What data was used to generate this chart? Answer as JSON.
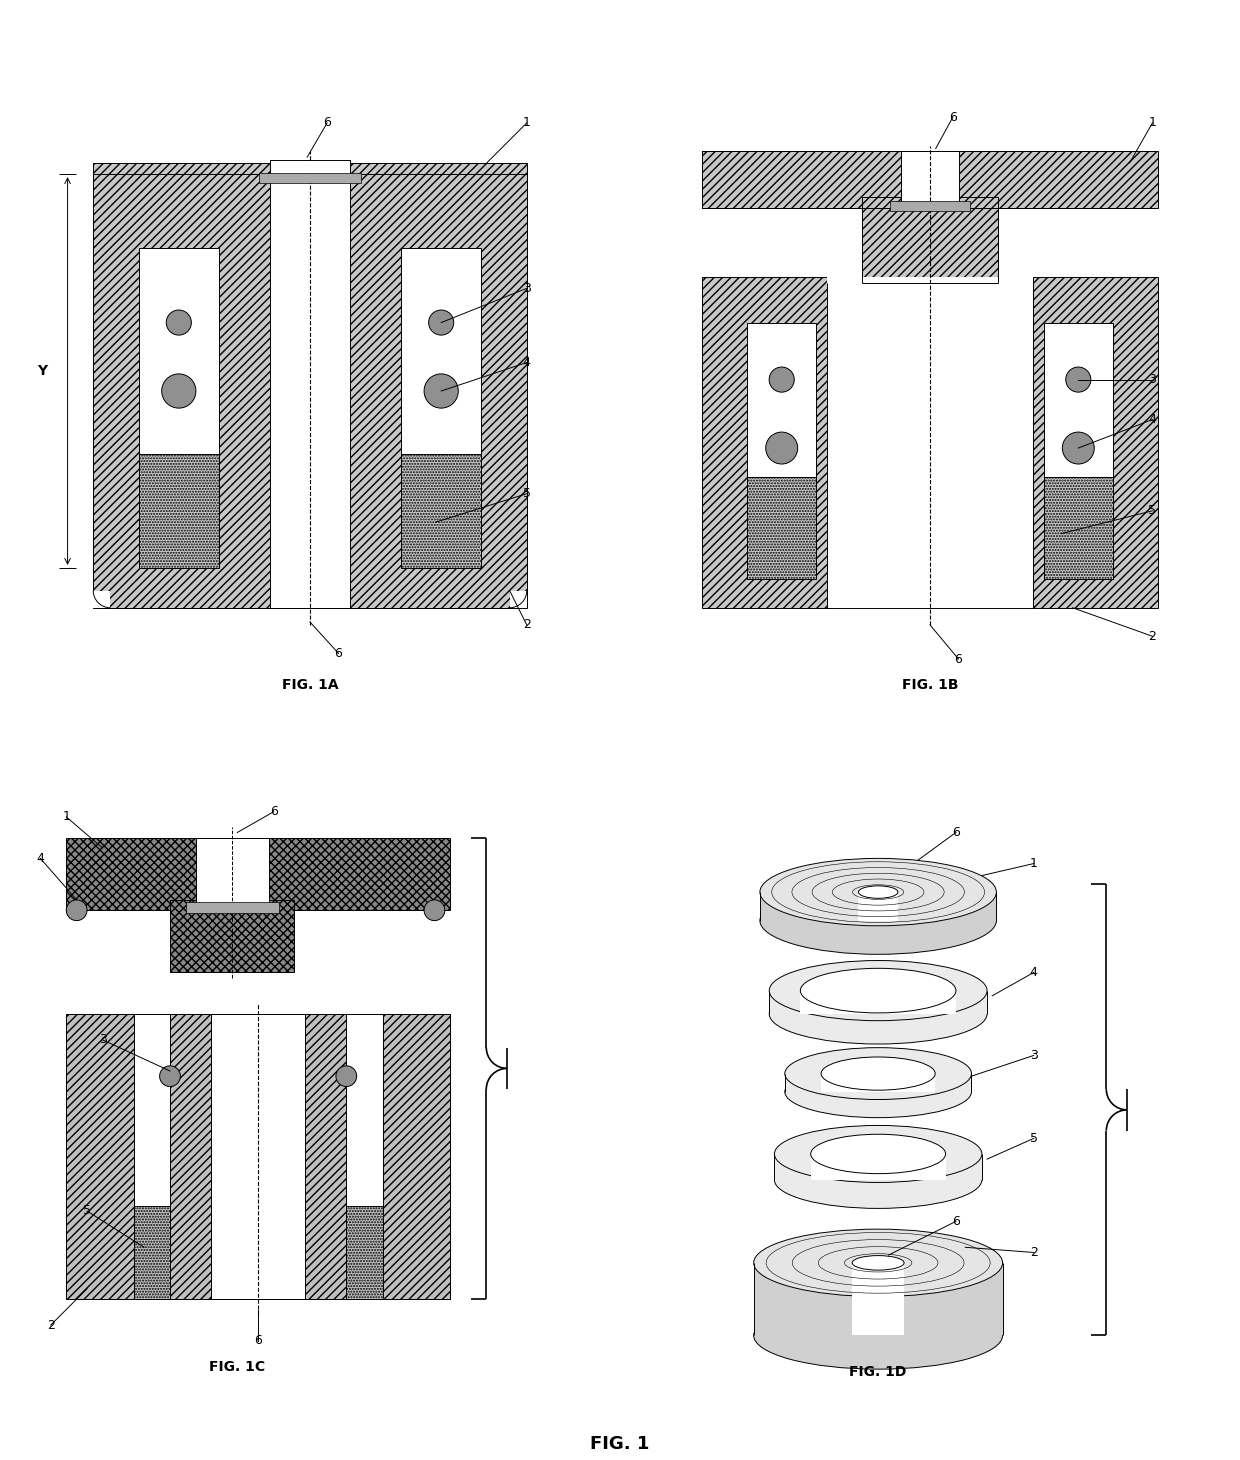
{
  "background_color": "#ffffff",
  "fig_title": "FIG. 1",
  "fig_labels": [
    "FIG. 1A",
    "FIG. 1B",
    "FIG. 1C",
    "FIG. 1D"
  ],
  "hatch_fc": "#c8c8c8",
  "stipple_fc": "#d2d2d2",
  "white": "#ffffff",
  "black": "#000000",
  "sensor_fc": "#909090"
}
